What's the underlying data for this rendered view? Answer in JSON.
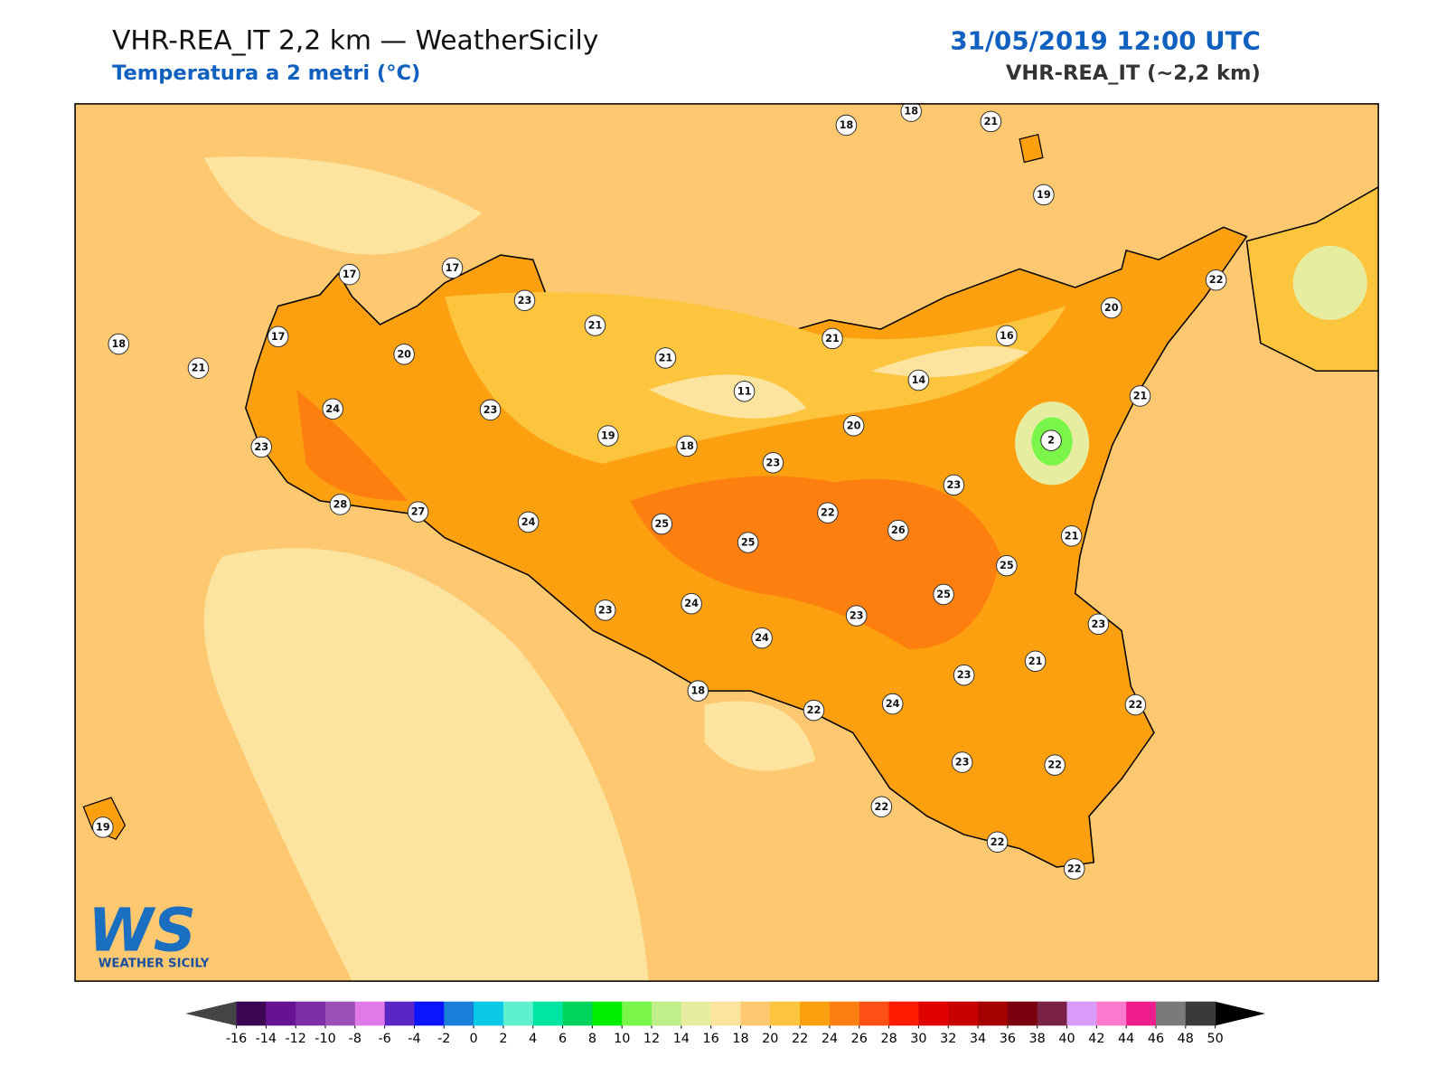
{
  "header": {
    "title": "VHR-REA_IT 2,2 km — WeatherSicily",
    "subtitle": "Temperatura a 2 metri (°C)",
    "date": "31/05/2019 12:00 UTC",
    "model": "VHR-REA_IT (~2,2 km)"
  },
  "stations": [
    18,
    18,
    21,
    19,
    17,
    17,
    23,
    21,
    22,
    20,
    18,
    17,
    20,
    21,
    21,
    21,
    16,
    14,
    11,
    21,
    24,
    23,
    19,
    18,
    20,
    2,
    23,
    23,
    23,
    28,
    27,
    24,
    25,
    25,
    22,
    26,
    21,
    25,
    25,
    23,
    24,
    23,
    24,
    23,
    21,
    23,
    18,
    22,
    24,
    22,
    23,
    22,
    22,
    19,
    22,
    22
  ],
  "logo": {
    "mark": "WS",
    "text": "WEATHER SICILY"
  },
  "colorbar": {
    "ticks": [
      -16,
      -14,
      -12,
      -10,
      -8,
      -6,
      -4,
      -2,
      0,
      2,
      4,
      6,
      8,
      10,
      12,
      14,
      16,
      18,
      20,
      22,
      24,
      26,
      28,
      30,
      32,
      34,
      36,
      38,
      40,
      42,
      44,
      46,
      48,
      50
    ],
    "colors": [
      "#3b0755",
      "#661392",
      "#7f2fa6",
      "#9d4fb8",
      "#e07ae8",
      "#5a26c5",
      "#0a14ff",
      "#1a7fd9",
      "#0ac9e6",
      "#5ef0cf",
      "#00e6a0",
      "#00d45c",
      "#00ee00",
      "#7af54a",
      "#c0ef8a",
      "#e6eca0",
      "#fde49e",
      "#fdc870",
      "#fdc53e",
      "#fda010",
      "#fd7f10",
      "#fd5014",
      "#fd1c00",
      "#e00000",
      "#c80000",
      "#a50000",
      "#7a0010",
      "#7a2245",
      "#d89cf8",
      "#fb7ad0",
      "#f01e8c",
      "#7a7a7a",
      "#3a3a3a"
    ],
    "under": "#444444",
    "over": "#000000"
  }
}
